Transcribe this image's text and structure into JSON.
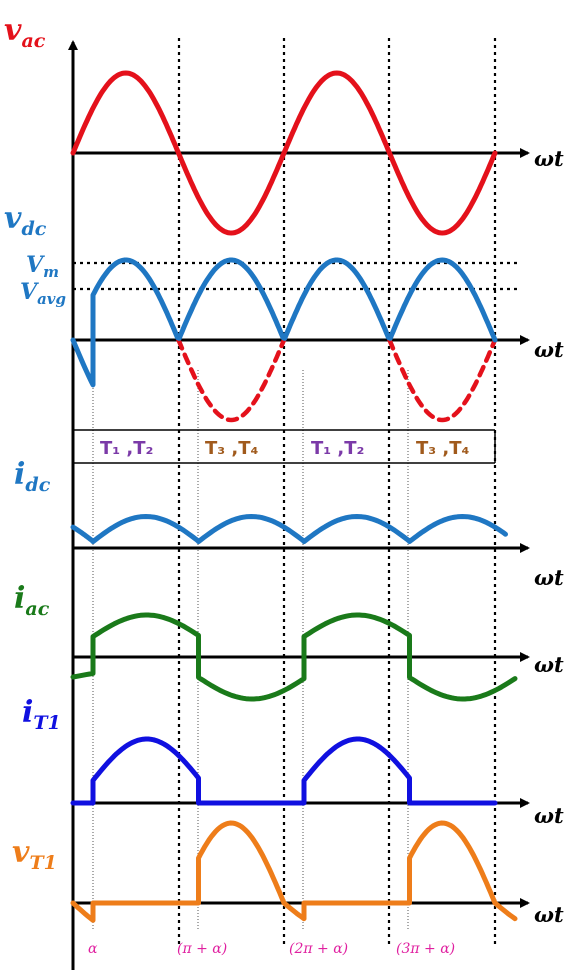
{
  "axes": {
    "x_label": "ωt",
    "panels": [
      {
        "id": "vac",
        "symbol": "v",
        "subscript": "ac",
        "color": "#e4111b"
      },
      {
        "id": "vdc",
        "symbol": "v",
        "subscript": "dc",
        "color": "#1f77c3"
      },
      {
        "id": "idc",
        "symbol": "i",
        "subscript": "dc",
        "color": "#1f77c3"
      },
      {
        "id": "iac",
        "symbol": "i",
        "subscript": "ac",
        "color": "#1a7a1a"
      },
      {
        "id": "iT1",
        "symbol": "i",
        "subscript": "T1",
        "color": "#1010e0"
      },
      {
        "id": "vT1",
        "symbol": "v",
        "subscript": "T1",
        "color": "#ee7d1a"
      }
    ]
  },
  "levels": {
    "vm": {
      "symbol": "V",
      "subscript": "m"
    },
    "vavg": {
      "symbol": "V",
      "subscript": "avg"
    }
  },
  "conduction": [
    {
      "label": "T₁ ,T₂",
      "color": "#7b3aa8"
    },
    {
      "label": "T₃ ,T₄",
      "color": "#a05a1c"
    },
    {
      "label": "T₁ ,T₂",
      "color": "#7b3aa8"
    },
    {
      "label": "T₃ ,T₄",
      "color": "#a05a1c"
    }
  ],
  "angles": [
    "α",
    "(π + α)",
    "(2π + α)",
    "(3π + α)"
  ],
  "colors": {
    "vac": "#e4111b",
    "vdc": "#1f77c3",
    "idc": "#1f77c3",
    "iac": "#1a7a1a",
    "iT1": "#1010e0",
    "vT1": "#ee7d1a",
    "angle_text": "#e020a0"
  }
}
